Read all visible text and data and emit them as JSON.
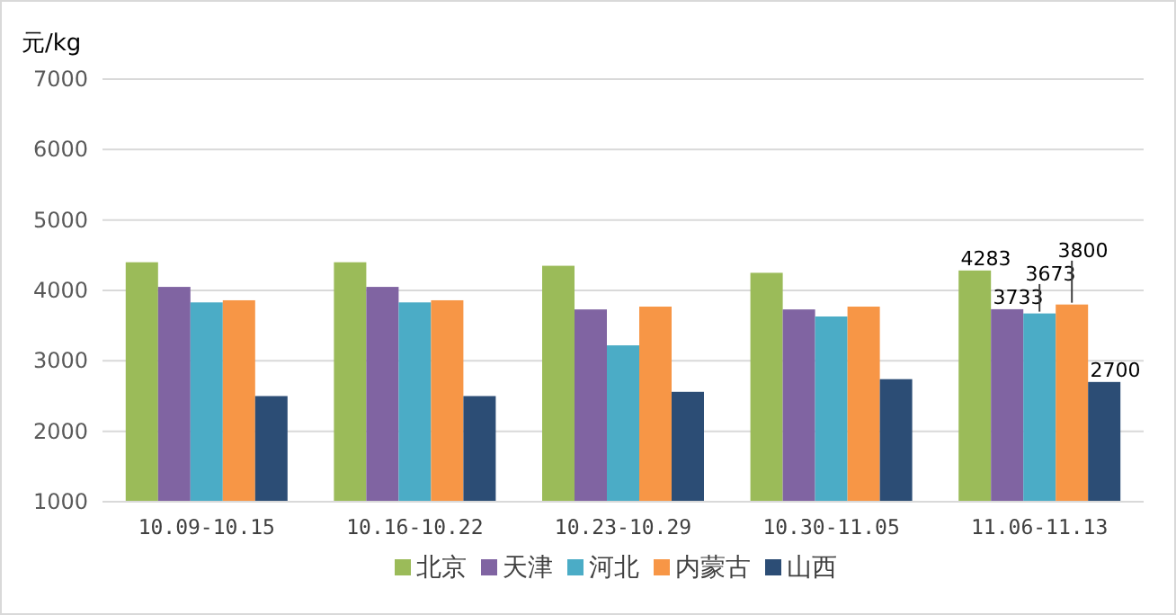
{
  "chart_data": {
    "type": "bar",
    "ylabel": "元/kg",
    "categories": [
      "10.09-10.15",
      "10.16-10.22",
      "10.23-10.29",
      "10.30-11.05",
      "11.06-11.13"
    ],
    "series": [
      {
        "name": "北京",
        "color": "#9bbb59",
        "values": [
          4400,
          4400,
          4350,
          4250,
          4283
        ],
        "value_labels": [
          null,
          null,
          null,
          null,
          "4283"
        ]
      },
      {
        "name": "天津",
        "color": "#8064a2",
        "values": [
          4050,
          4050,
          3730,
          3730,
          3733
        ],
        "value_labels": [
          null,
          null,
          null,
          null,
          "3733"
        ]
      },
      {
        "name": "河北",
        "color": "#4bacc6",
        "values": [
          3830,
          3830,
          3220,
          3630,
          3673
        ],
        "value_labels": [
          null,
          null,
          null,
          null,
          "3673"
        ]
      },
      {
        "name": "内蒙古",
        "color": "#f79646",
        "values": [
          3860,
          3860,
          3770,
          3770,
          3800
        ],
        "value_labels": [
          null,
          null,
          null,
          null,
          "3800"
        ]
      },
      {
        "name": "山西",
        "color": "#2c4d75",
        "values": [
          2500,
          2500,
          2560,
          2740,
          2700
        ],
        "value_labels": [
          null,
          null,
          null,
          null,
          "2700"
        ]
      }
    ],
    "ylim": [
      1000,
      7000
    ],
    "yticks": [
      1000,
      2000,
      3000,
      4000,
      5000,
      6000,
      7000
    ],
    "grid": "y",
    "legend": "bottom"
  }
}
